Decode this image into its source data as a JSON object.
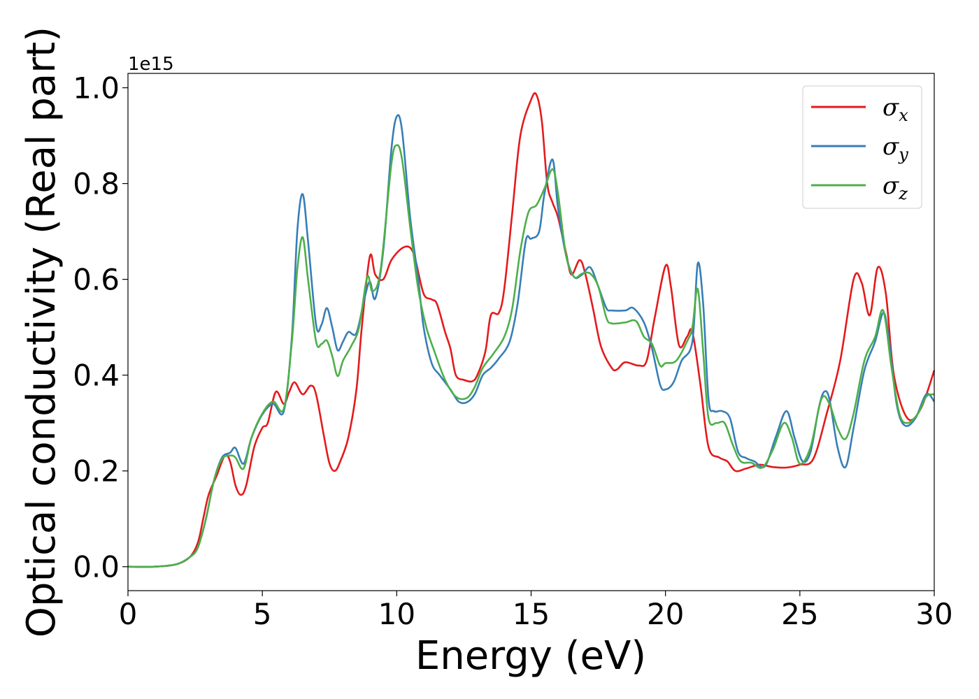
{
  "chart_data": {
    "type": "line",
    "title": "",
    "xlabel": "Energy (eV)",
    "ylabel": "Optical conductivity (Real part)",
    "y_offset_label": "1e15",
    "xlim": [
      0,
      30
    ],
    "ylim": [
      -0.05,
      1.03
    ],
    "x_ticks": [
      0,
      5,
      10,
      15,
      20,
      25,
      30
    ],
    "x_tick_labels": [
      "0",
      "5",
      "10",
      "15",
      "20",
      "25",
      "30"
    ],
    "y_ticks": [
      0.0,
      0.2,
      0.4,
      0.6,
      0.8,
      1.0
    ],
    "y_tick_labels": [
      "0.0",
      "0.2",
      "0.4",
      "0.6",
      "0.8",
      "1.0"
    ],
    "grid": false,
    "legend_position": "top-right",
    "series": [
      {
        "name": "σx",
        "symbol": "σ",
        "subscript": "x",
        "color": "#e41a1c",
        "points": [
          [
            0,
            0.0
          ],
          [
            1,
            0.0
          ],
          [
            1.8,
            0.005
          ],
          [
            2.3,
            0.02
          ],
          [
            2.6,
            0.05
          ],
          [
            2.8,
            0.1
          ],
          [
            3.0,
            0.15
          ],
          [
            3.3,
            0.19
          ],
          [
            3.6,
            0.232
          ],
          [
            3.8,
            0.22
          ],
          [
            4.0,
            0.17
          ],
          [
            4.2,
            0.15
          ],
          [
            4.4,
            0.17
          ],
          [
            4.7,
            0.25
          ],
          [
            5.0,
            0.29
          ],
          [
            5.2,
            0.3
          ],
          [
            5.5,
            0.365
          ],
          [
            5.8,
            0.34
          ],
          [
            6.0,
            0.365
          ],
          [
            6.2,
            0.385
          ],
          [
            6.5,
            0.36
          ],
          [
            6.8,
            0.378
          ],
          [
            7.0,
            0.36
          ],
          [
            7.3,
            0.27
          ],
          [
            7.5,
            0.215
          ],
          [
            7.7,
            0.2
          ],
          [
            7.9,
            0.22
          ],
          [
            8.2,
            0.27
          ],
          [
            8.5,
            0.37
          ],
          [
            8.7,
            0.5
          ],
          [
            9.0,
            0.648
          ],
          [
            9.2,
            0.61
          ],
          [
            9.5,
            0.6
          ],
          [
            9.8,
            0.64
          ],
          [
            10.2,
            0.665
          ],
          [
            10.5,
            0.666
          ],
          [
            10.7,
            0.64
          ],
          [
            11.0,
            0.57
          ],
          [
            11.3,
            0.558
          ],
          [
            11.5,
            0.548
          ],
          [
            11.8,
            0.49
          ],
          [
            12.0,
            0.455
          ],
          [
            12.2,
            0.4
          ],
          [
            12.5,
            0.39
          ],
          [
            12.8,
            0.387
          ],
          [
            13.0,
            0.4
          ],
          [
            13.3,
            0.45
          ],
          [
            13.5,
            0.525
          ],
          [
            13.8,
            0.53
          ],
          [
            14.0,
            0.58
          ],
          [
            14.3,
            0.74
          ],
          [
            14.6,
            0.9
          ],
          [
            15.0,
            0.975
          ],
          [
            15.2,
            0.985
          ],
          [
            15.4,
            0.93
          ],
          [
            15.6,
            0.8
          ],
          [
            15.8,
            0.76
          ],
          [
            16.0,
            0.73
          ],
          [
            16.3,
            0.655
          ],
          [
            16.5,
            0.61
          ],
          [
            16.8,
            0.64
          ],
          [
            17.0,
            0.615
          ],
          [
            17.3,
            0.54
          ],
          [
            17.6,
            0.46
          ],
          [
            18.0,
            0.415
          ],
          [
            18.2,
            0.412
          ],
          [
            18.5,
            0.427
          ],
          [
            19.0,
            0.42
          ],
          [
            19.3,
            0.43
          ],
          [
            19.6,
            0.52
          ],
          [
            20.0,
            0.628
          ],
          [
            20.2,
            0.585
          ],
          [
            20.5,
            0.463
          ],
          [
            20.8,
            0.48
          ],
          [
            21.0,
            0.49
          ],
          [
            21.3,
            0.38
          ],
          [
            21.6,
            0.25
          ],
          [
            22.0,
            0.228
          ],
          [
            22.3,
            0.22
          ],
          [
            22.6,
            0.2
          ],
          [
            23.0,
            0.205
          ],
          [
            23.5,
            0.213
          ],
          [
            24.0,
            0.208
          ],
          [
            24.5,
            0.207
          ],
          [
            25.0,
            0.213
          ],
          [
            25.5,
            0.225
          ],
          [
            26.0,
            0.32
          ],
          [
            26.5,
            0.43
          ],
          [
            27.0,
            0.6
          ],
          [
            27.3,
            0.593
          ],
          [
            27.6,
            0.525
          ],
          [
            27.9,
            0.625
          ],
          [
            28.2,
            0.57
          ],
          [
            28.5,
            0.4
          ],
          [
            29.0,
            0.31
          ],
          [
            29.5,
            0.33
          ],
          [
            30.0,
            0.41
          ]
        ]
      },
      {
        "name": "σy",
        "symbol": "σ",
        "subscript": "y",
        "color": "#377eb8",
        "points": [
          [
            0,
            0.0
          ],
          [
            1,
            0.0
          ],
          [
            1.8,
            0.005
          ],
          [
            2.3,
            0.02
          ],
          [
            2.6,
            0.04
          ],
          [
            2.9,
            0.1
          ],
          [
            3.2,
            0.18
          ],
          [
            3.5,
            0.228
          ],
          [
            3.8,
            0.238
          ],
          [
            4.0,
            0.248
          ],
          [
            4.3,
            0.215
          ],
          [
            4.6,
            0.27
          ],
          [
            5.0,
            0.318
          ],
          [
            5.4,
            0.34
          ],
          [
            5.8,
            0.325
          ],
          [
            6.1,
            0.48
          ],
          [
            6.3,
            0.7
          ],
          [
            6.5,
            0.778
          ],
          [
            6.7,
            0.68
          ],
          [
            7.0,
            0.505
          ],
          [
            7.2,
            0.505
          ],
          [
            7.4,
            0.54
          ],
          [
            7.6,
            0.5
          ],
          [
            7.8,
            0.452
          ],
          [
            8.0,
            0.47
          ],
          [
            8.2,
            0.49
          ],
          [
            8.5,
            0.488
          ],
          [
            8.8,
            0.56
          ],
          [
            9.0,
            0.595
          ],
          [
            9.2,
            0.56
          ],
          [
            9.5,
            0.66
          ],
          [
            9.8,
            0.87
          ],
          [
            10.0,
            0.94
          ],
          [
            10.2,
            0.91
          ],
          [
            10.5,
            0.73
          ],
          [
            10.8,
            0.6
          ],
          [
            11.0,
            0.5
          ],
          [
            11.3,
            0.425
          ],
          [
            11.6,
            0.4
          ],
          [
            12.0,
            0.37
          ],
          [
            12.3,
            0.345
          ],
          [
            12.6,
            0.343
          ],
          [
            12.9,
            0.36
          ],
          [
            13.2,
            0.4
          ],
          [
            13.5,
            0.415
          ],
          [
            13.8,
            0.435
          ],
          [
            14.2,
            0.47
          ],
          [
            14.5,
            0.55
          ],
          [
            14.8,
            0.68
          ],
          [
            15.0,
            0.685
          ],
          [
            15.3,
            0.7
          ],
          [
            15.5,
            0.78
          ],
          [
            15.8,
            0.85
          ],
          [
            16.0,
            0.75
          ],
          [
            16.3,
            0.65
          ],
          [
            16.6,
            0.605
          ],
          [
            16.9,
            0.61
          ],
          [
            17.2,
            0.625
          ],
          [
            17.5,
            0.585
          ],
          [
            17.8,
            0.54
          ],
          [
            18.0,
            0.535
          ],
          [
            18.5,
            0.535
          ],
          [
            18.8,
            0.54
          ],
          [
            19.2,
            0.51
          ],
          [
            19.5,
            0.455
          ],
          [
            19.8,
            0.38
          ],
          [
            20.0,
            0.37
          ],
          [
            20.3,
            0.385
          ],
          [
            20.6,
            0.43
          ],
          [
            21.0,
            0.47
          ],
          [
            21.2,
            0.633
          ],
          [
            21.4,
            0.55
          ],
          [
            21.6,
            0.35
          ],
          [
            21.8,
            0.325
          ],
          [
            22.1,
            0.325
          ],
          [
            22.4,
            0.31
          ],
          [
            22.7,
            0.24
          ],
          [
            23.0,
            0.227
          ],
          [
            23.3,
            0.22
          ],
          [
            23.7,
            0.21
          ],
          [
            24.1,
            0.27
          ],
          [
            24.5,
            0.325
          ],
          [
            24.8,
            0.27
          ],
          [
            25.1,
            0.22
          ],
          [
            25.4,
            0.24
          ],
          [
            25.7,
            0.33
          ],
          [
            25.9,
            0.365
          ],
          [
            26.1,
            0.35
          ],
          [
            26.4,
            0.25
          ],
          [
            26.7,
            0.208
          ],
          [
            27.0,
            0.29
          ],
          [
            27.4,
            0.41
          ],
          [
            27.8,
            0.47
          ],
          [
            28.1,
            0.53
          ],
          [
            28.3,
            0.48
          ],
          [
            28.6,
            0.34
          ],
          [
            28.9,
            0.295
          ],
          [
            29.3,
            0.31
          ],
          [
            29.7,
            0.36
          ],
          [
            30.0,
            0.345
          ]
        ]
      },
      {
        "name": "σz",
        "symbol": "σ",
        "subscript": "z",
        "color": "#4daf4a",
        "points": [
          [
            0,
            0.0
          ],
          [
            1,
            0.0
          ],
          [
            1.8,
            0.005
          ],
          [
            2.3,
            0.02
          ],
          [
            2.6,
            0.04
          ],
          [
            2.9,
            0.1
          ],
          [
            3.2,
            0.18
          ],
          [
            3.5,
            0.225
          ],
          [
            3.8,
            0.232
          ],
          [
            4.0,
            0.228
          ],
          [
            4.3,
            0.205
          ],
          [
            4.6,
            0.27
          ],
          [
            5.0,
            0.32
          ],
          [
            5.4,
            0.345
          ],
          [
            5.8,
            0.33
          ],
          [
            6.1,
            0.47
          ],
          [
            6.3,
            0.62
          ],
          [
            6.5,
            0.688
          ],
          [
            6.7,
            0.6
          ],
          [
            7.0,
            0.47
          ],
          [
            7.2,
            0.465
          ],
          [
            7.4,
            0.472
          ],
          [
            7.6,
            0.44
          ],
          [
            7.8,
            0.398
          ],
          [
            8.0,
            0.43
          ],
          [
            8.3,
            0.46
          ],
          [
            8.6,
            0.5
          ],
          [
            8.9,
            0.605
          ],
          [
            9.1,
            0.575
          ],
          [
            9.4,
            0.62
          ],
          [
            9.8,
            0.84
          ],
          [
            10.0,
            0.88
          ],
          [
            10.2,
            0.85
          ],
          [
            10.5,
            0.71
          ],
          [
            10.8,
            0.58
          ],
          [
            11.1,
            0.5
          ],
          [
            11.4,
            0.45
          ],
          [
            11.8,
            0.39
          ],
          [
            12.2,
            0.355
          ],
          [
            12.6,
            0.352
          ],
          [
            12.9,
            0.375
          ],
          [
            13.2,
            0.415
          ],
          [
            13.6,
            0.445
          ],
          [
            14.0,
            0.48
          ],
          [
            14.3,
            0.54
          ],
          [
            14.6,
            0.66
          ],
          [
            14.9,
            0.74
          ],
          [
            15.2,
            0.755
          ],
          [
            15.5,
            0.79
          ],
          [
            15.8,
            0.83
          ],
          [
            16.0,
            0.78
          ],
          [
            16.3,
            0.65
          ],
          [
            16.6,
            0.605
          ],
          [
            16.9,
            0.612
          ],
          [
            17.2,
            0.612
          ],
          [
            17.5,
            0.585
          ],
          [
            17.8,
            0.52
          ],
          [
            18.0,
            0.508
          ],
          [
            18.5,
            0.51
          ],
          [
            18.9,
            0.513
          ],
          [
            19.2,
            0.48
          ],
          [
            19.5,
            0.465
          ],
          [
            19.8,
            0.42
          ],
          [
            20.0,
            0.425
          ],
          [
            20.4,
            0.43
          ],
          [
            20.8,
            0.47
          ],
          [
            21.0,
            0.5
          ],
          [
            21.2,
            0.58
          ],
          [
            21.4,
            0.45
          ],
          [
            21.6,
            0.31
          ],
          [
            21.9,
            0.3
          ],
          [
            22.2,
            0.3
          ],
          [
            22.5,
            0.255
          ],
          [
            22.8,
            0.22
          ],
          [
            23.2,
            0.217
          ],
          [
            23.6,
            0.207
          ],
          [
            24.0,
            0.245
          ],
          [
            24.4,
            0.3
          ],
          [
            24.7,
            0.27
          ],
          [
            25.0,
            0.215
          ],
          [
            25.4,
            0.25
          ],
          [
            25.8,
            0.35
          ],
          [
            26.1,
            0.34
          ],
          [
            26.4,
            0.29
          ],
          [
            26.7,
            0.267
          ],
          [
            27.0,
            0.32
          ],
          [
            27.4,
            0.43
          ],
          [
            27.8,
            0.48
          ],
          [
            28.1,
            0.535
          ],
          [
            28.4,
            0.42
          ],
          [
            28.7,
            0.32
          ],
          [
            29.0,
            0.3
          ],
          [
            29.4,
            0.32
          ],
          [
            29.7,
            0.355
          ],
          [
            30.0,
            0.36
          ]
        ]
      }
    ]
  }
}
